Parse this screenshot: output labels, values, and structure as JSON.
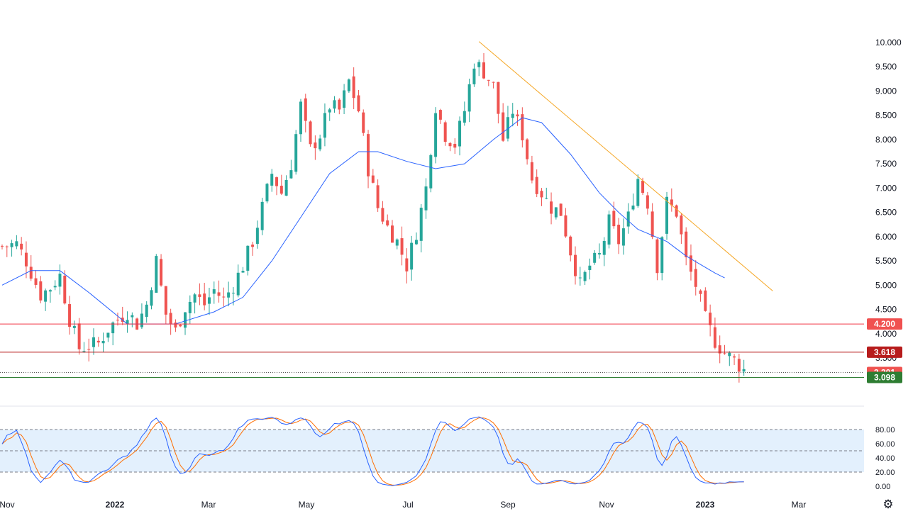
{
  "chart_data": [
    {
      "type": "candlestick",
      "x_ticks": [
        "Nov",
        "2022",
        "Mar",
        "May",
        "Jul",
        "Sep",
        "Nov",
        "2023",
        "Mar"
      ],
      "x_ticks_bold": [
        "2022",
        "2023"
      ],
      "y_ticks": [
        "10.000",
        "9.500",
        "9.000",
        "8.500",
        "8.000",
        "7.500",
        "7.000",
        "6.500",
        "6.000",
        "5.500",
        "5.000",
        "4.500",
        "4.000",
        "3.500"
      ],
      "ylim": [
        3.0,
        10.1
      ],
      "colors": {
        "up": "#26a69a",
        "down": "#ef5350",
        "moving_average": "#2962ff",
        "trendline": "#f5a623"
      },
      "close_anchors": [
        [
          0,
          5.8
        ],
        [
          3,
          5.85
        ],
        [
          5,
          5.5
        ],
        [
          8,
          4.8
        ],
        [
          10,
          4.95
        ],
        [
          12,
          5.2
        ],
        [
          14,
          4.3
        ],
        [
          16,
          3.7
        ],
        [
          18,
          3.75
        ],
        [
          20,
          3.8
        ],
        [
          22,
          4.1
        ],
        [
          24,
          4.3
        ],
        [
          26,
          4.45
        ],
        [
          28,
          4.2
        ],
        [
          30,
          4.6
        ],
        [
          32,
          5.5
        ],
        [
          34,
          4.4
        ],
        [
          36,
          4.05
        ],
        [
          38,
          4.55
        ],
        [
          40,
          4.8
        ],
        [
          42,
          4.6
        ],
        [
          44,
          4.9
        ],
        [
          46,
          4.7
        ],
        [
          48,
          5.0
        ],
        [
          50,
          5.4
        ],
        [
          52,
          5.9
        ],
        [
          54,
          6.6
        ],
        [
          56,
          7.3
        ],
        [
          58,
          6.9
        ],
        [
          60,
          7.5
        ],
        [
          62,
          8.7
        ],
        [
          64,
          7.8
        ],
        [
          66,
          8.1
        ],
        [
          68,
          8.7
        ],
        [
          70,
          8.6
        ],
        [
          72,
          9.2
        ],
        [
          74,
          8.6
        ],
        [
          76,
          7.4
        ],
        [
          78,
          6.6
        ],
        [
          80,
          6.2
        ],
        [
          82,
          5.9
        ],
        [
          84,
          5.4
        ],
        [
          86,
          6.1
        ],
        [
          88,
          7.0
        ],
        [
          90,
          8.7
        ],
        [
          92,
          8.1
        ],
        [
          94,
          7.9
        ],
        [
          96,
          8.6
        ],
        [
          98,
          9.6
        ],
        [
          100,
          9.4
        ],
        [
          102,
          9.1
        ],
        [
          104,
          8.0
        ],
        [
          106,
          8.6
        ],
        [
          108,
          8.1
        ],
        [
          110,
          7.2
        ],
        [
          112,
          6.9
        ],
        [
          114,
          6.6
        ],
        [
          116,
          6.5
        ],
        [
          118,
          5.7
        ],
        [
          120,
          5.0
        ],
        [
          122,
          5.4
        ],
        [
          124,
          5.6
        ],
        [
          126,
          6.3
        ],
        [
          128,
          5.9
        ],
        [
          130,
          6.4
        ],
        [
          132,
          7.2
        ],
        [
          134,
          6.7
        ],
        [
          136,
          5.4
        ],
        [
          138,
          6.7
        ],
        [
          140,
          6.5
        ],
        [
          142,
          5.5
        ],
        [
          144,
          5.0
        ],
        [
          146,
          4.3
        ],
        [
          148,
          3.85
        ],
        [
          150,
          3.6
        ],
        [
          152,
          3.45
        ],
        [
          154,
          3.25
        ]
      ],
      "moving_average": [
        [
          0,
          5.0
        ],
        [
          6,
          5.3
        ],
        [
          12,
          5.3
        ],
        [
          18,
          4.85
        ],
        [
          26,
          4.2
        ],
        [
          36,
          4.2
        ],
        [
          44,
          4.45
        ],
        [
          50,
          4.75
        ],
        [
          56,
          5.5
        ],
        [
          62,
          6.4
        ],
        [
          68,
          7.3
        ],
        [
          74,
          7.75
        ],
        [
          78,
          7.75
        ],
        [
          84,
          7.55
        ],
        [
          90,
          7.4
        ],
        [
          96,
          7.5
        ],
        [
          102,
          8.0
        ],
        [
          108,
          8.45
        ],
        [
          112,
          8.35
        ],
        [
          118,
          7.7
        ],
        [
          124,
          6.9
        ],
        [
          128,
          6.5
        ],
        [
          132,
          6.15
        ],
        [
          138,
          5.9
        ],
        [
          142,
          5.6
        ],
        [
          148,
          5.25
        ],
        [
          150,
          5.15
        ]
      ],
      "trendline": {
        "from": [
          99,
          10.02
        ],
        "to": [
          160,
          4.88
        ]
      },
      "price_lines": [
        {
          "value": 4.2,
          "label": "4.200",
          "color": "#f23645",
          "label_bg": "#f05150"
        },
        {
          "value": 3.618,
          "label": "3.618",
          "color": "#b71c1c",
          "label_bg": "#b71c1c"
        },
        {
          "value": 3.201,
          "label": "3.201",
          "color": "#ef5350",
          "label_bg": "#ef5350",
          "dotted": true
        },
        {
          "value": 3.098,
          "label": "3.098",
          "color": "#2e7d32",
          "label_bg": "#2e7d32"
        }
      ]
    },
    {
      "type": "line",
      "name": "oscillator",
      "y_ticks": [
        "80.00",
        "60.00",
        "40.00",
        "20.00",
        "0.00"
      ],
      "ylim": [
        0,
        100
      ],
      "levels": [
        80,
        50,
        20
      ],
      "colors": {
        "k": "#2962ff",
        "d": "#ff6d00",
        "band": "#e3f0fd",
        "level": "#787b86"
      }
    }
  ],
  "settings": {
    "icon": "gear-icon",
    "glyph": "⚙"
  }
}
